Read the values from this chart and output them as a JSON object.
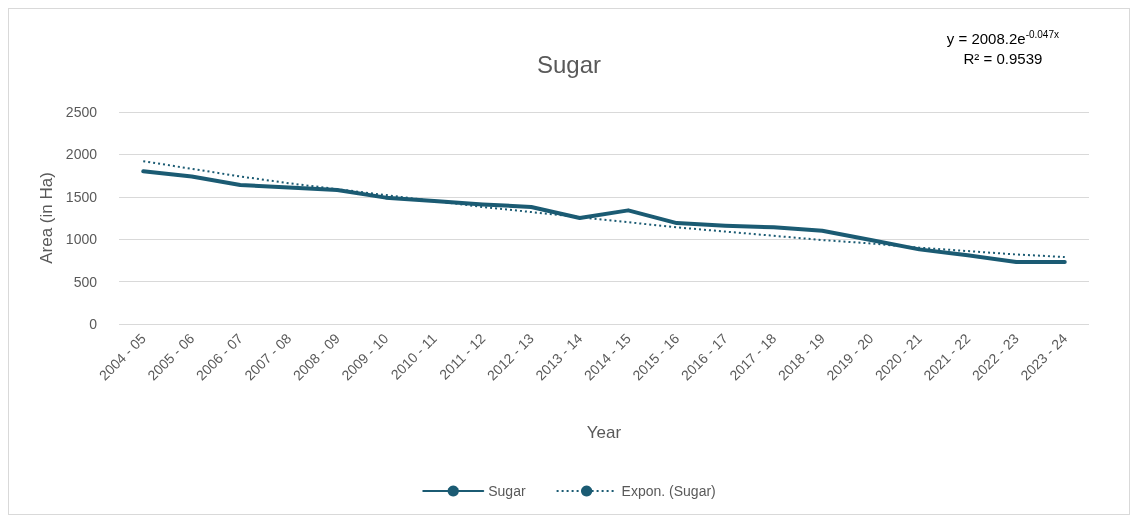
{
  "chart_data": {
    "type": "line",
    "title": "Sugar",
    "xlabel": "Year",
    "ylabel": "Area (in Ha)",
    "categories": [
      "2004 - 05",
      "2005 - 06",
      "2006 - 07",
      "2007 - 08",
      "2008 - 09",
      "2009 - 10",
      "2010 - 11",
      "2011 - 12",
      "2012 - 13",
      "2013 - 14",
      "2014 - 15",
      "2015 - 16",
      "2016 - 17",
      "2017 - 18",
      "2018 - 19",
      "2019 - 20",
      "2020 - 21",
      "2021 - 22",
      "2022 - 23",
      "2023 - 24"
    ],
    "series": [
      {
        "name": "Sugar",
        "color": "#1b5b73",
        "line_style": "solid",
        "values": [
          1800,
          1740,
          1640,
          1610,
          1580,
          1490,
          1450,
          1410,
          1380,
          1250,
          1340,
          1190,
          1160,
          1140,
          1100,
          990,
          880,
          810,
          730,
          730
        ]
      },
      {
        "name": "Expon. (Sugar)",
        "color": "#1b5b73",
        "line_style": "dotted",
        "values": [
          1920,
          1830,
          1740,
          1660,
          1590,
          1520,
          1450,
          1380,
          1320,
          1260,
          1200,
          1140,
          1090,
          1040,
          990,
          950,
          900,
          860,
          820,
          790
        ]
      }
    ],
    "ylim": [
      0,
      2500
    ],
    "yticks": [
      0,
      500,
      1000,
      1500,
      2000,
      2500
    ],
    "grid": "y",
    "legend": "bottom",
    "marker": "none",
    "annotations": [
      "y = 2008.2e$^{-0.047x}$",
      "R² = 0.9539"
    ]
  }
}
